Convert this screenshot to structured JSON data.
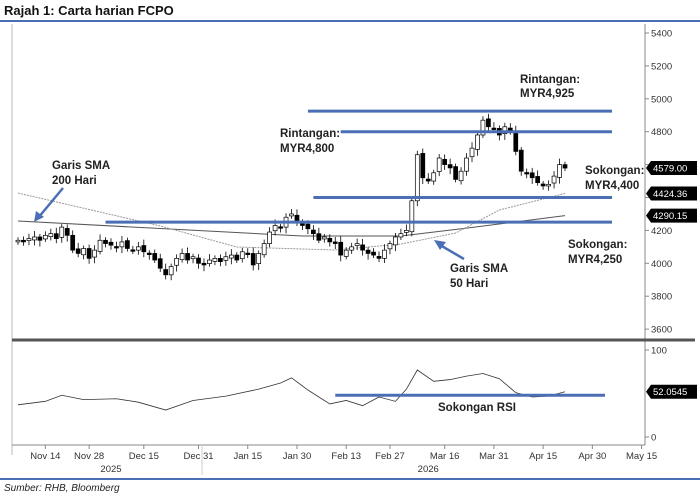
{
  "title": "Rajah 1: Carta harian FCPO",
  "source": "Sumber: RHB, Bloomberg",
  "chart_data": {
    "type": "candlestick",
    "title": "Rajah 1: Carta harian FCPO",
    "price_axis": {
      "ylim": [
        3500,
        5450
      ],
      "ticks": [
        3600,
        3800,
        4000,
        4200,
        4400,
        4600,
        4800,
        5000,
        5200,
        5400
      ],
      "tick_labels": [
        "3600",
        "3800",
        "4000",
        "4200",
        "",
        "",
        "4800",
        "5000",
        "5200",
        "5400"
      ]
    },
    "rsi_axis": {
      "ylim": [
        0,
        100
      ],
      "ticks": [
        0,
        100
      ],
      "tick_labels": [
        "0",
        "100"
      ]
    },
    "x_tick_labels": [
      "Nov 14",
      "Nov 28",
      "Dec 15",
      "Dec 31",
      "Jan 15",
      "Jan 30",
      "Feb 13",
      "Feb 27",
      "Mar 16",
      "Mar 31",
      "Apr 15",
      "Apr 30",
      "May 15"
    ],
    "x_tick_index": [
      5,
      13,
      23,
      33,
      42,
      51,
      60,
      68,
      78,
      87,
      96,
      105,
      114
    ],
    "year_labels": [
      "2025",
      "2026"
    ],
    "year_label_index": [
      17,
      75
    ],
    "closes": [
      4140,
      4130,
      4150,
      4160,
      4140,
      4170,
      4180,
      4150,
      4220,
      4170,
      4080,
      4060,
      4090,
      4030,
      4080,
      4140,
      4120,
      4110,
      4100,
      4130,
      4090,
      4080,
      4100,
      4070,
      4060,
      4020,
      3970,
      3930,
      3980,
      4030,
      4060,
      4020,
      4040,
      4000,
      3990,
      4020,
      4030,
      4010,
      4040,
      4050,
      4020,
      4070,
      4060,
      3990,
      4060,
      4120,
      4190,
      4230,
      4220,
      4280,
      4300,
      4250,
      4230,
      4210,
      4180,
      4140,
      4160,
      4130,
      4120,
      4050,
      4080,
      4100,
      4120,
      4080,
      4060,
      4050,
      4030,
      4080,
      4120,
      4160,
      4180,
      4200,
      4380,
      4660,
      4520,
      4500,
      4550,
      4640,
      4600,
      4580,
      4510,
      4560,
      4640,
      4700,
      4780,
      4870,
      4830,
      4820,
      4780,
      4830,
      4800,
      4680,
      4560,
      4550,
      4520,
      4490,
      4470,
      4480,
      4530,
      4600,
      4579
    ],
    "sma200": {
      "index": [
        0,
        52,
        70,
        82,
        100
      ],
      "values": [
        4257,
        4166,
        4166,
        4214,
        4290.15
      ]
    },
    "sma50": {
      "index": [
        0,
        26,
        40,
        58,
        70,
        80,
        88,
        100
      ],
      "values": [
        4427,
        4227,
        4099,
        4081,
        4117,
        4184,
        4324,
        4424.36
      ]
    },
    "rsi": {
      "index": [
        0,
        5,
        8,
        12,
        18,
        22,
        27,
        32,
        38,
        44,
        48,
        50,
        53,
        57,
        60,
        63,
        66,
        69,
        71,
        73,
        76,
        79,
        82,
        85,
        88,
        91,
        94,
        97,
        100
      ],
      "values": [
        37,
        41,
        48,
        43,
        44,
        40,
        31,
        42,
        47,
        55,
        62,
        68,
        54,
        38,
        42,
        36,
        46,
        41,
        55,
        77,
        64,
        66,
        70,
        73,
        67,
        51,
        46,
        47,
        52.0545
      ]
    },
    "last_labels": {
      "price": "4579.00",
      "sma50": "4424.36",
      "sma200": "4290.15",
      "rsi": "52.0545"
    },
    "levels": [
      {
        "value": 4925,
        "label1": "Rintangan:",
        "label2": "MYR4,925",
        "from": 53
      },
      {
        "value": 4800,
        "label1": "Rintangan:",
        "label2": "MYR4,800",
        "from": 59
      },
      {
        "value": 4400,
        "label1": "Sokongan:",
        "label2": "MYR4,400",
        "from": 54
      },
      {
        "value": 4250,
        "label1": "Sokongan:",
        "label2": "MYR4,250",
        "from": 16
      }
    ],
    "rsi_support": {
      "value": 48,
      "label": "Sokongan RSI",
      "from": 58
    },
    "annotations": {
      "sma200": [
        "Garis SMA",
        "200 Hari"
      ],
      "sma50": [
        "Garis SMA",
        "50 Hari"
      ]
    },
    "colors": {
      "level": "#4a6fb5",
      "up": "#ffffff",
      "down": "#000000",
      "sma200": "#555555",
      "sma50": "#999999"
    }
  }
}
